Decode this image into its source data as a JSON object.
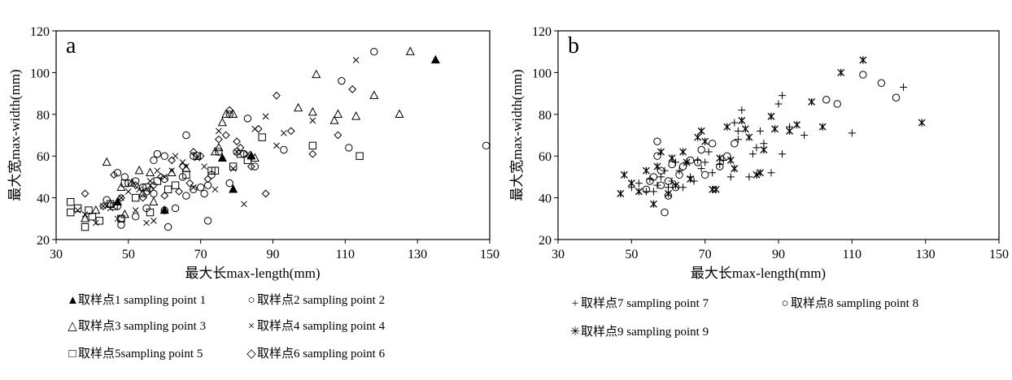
{
  "chart_data": [
    {
      "type": "scatter",
      "panel_label": "a",
      "xlabel": "最大长max-length(mm)",
      "ylabel": "最大宽max-width(mm)",
      "xlim": [
        30,
        150
      ],
      "ylim": [
        20,
        120
      ],
      "xticks": [
        "30",
        "50",
        "70",
        "90",
        "110",
        "130",
        "150"
      ],
      "yticks": [
        "20",
        "40",
        "60",
        "80",
        "100",
        "120"
      ],
      "legend_position": "below",
      "series": [
        {
          "name": "取样点1 sampling point 1",
          "marker": "filled-triangle",
          "x": [
            135,
            60,
            47,
            79,
            76,
            84
          ],
          "y": [
            106,
            34,
            38,
            44,
            59,
            60
          ]
        },
        {
          "name": "取样点2 sampling point 2",
          "marker": "circle",
          "x": [
            118,
            149,
            109,
            72,
            61,
            55,
            60,
            47,
            50,
            44,
            111,
            93,
            66,
            58,
            65,
            60,
            83,
            82,
            52,
            48,
            70,
            71,
            52,
            63,
            66,
            78,
            57,
            75,
            68,
            48,
            55,
            49,
            73,
            80,
            72,
            60,
            68,
            78,
            85,
            54,
            57,
            47
          ],
          "y": [
            110,
            65,
            96,
            29,
            26,
            35,
            34,
            52,
            47,
            39,
            64,
            63,
            70,
            61,
            50,
            60,
            78,
            61,
            31,
            27,
            45,
            42,
            48,
            35,
            41,
            80,
            58,
            62,
            44,
            30,
            43,
            50,
            51,
            62,
            46,
            49,
            60,
            47,
            55,
            45,
            42,
            36
          ]
        },
        {
          "name": "取样点3 sampling point 3",
          "marker": "triangle",
          "x": [
            128,
            102,
            118,
            125,
            113,
            97,
            107,
            108,
            101,
            76,
            75,
            85,
            44,
            53,
            56,
            48,
            41,
            38,
            62,
            74,
            66,
            79,
            54,
            45,
            51,
            77,
            49,
            57
          ],
          "y": [
            110,
            99,
            89,
            80,
            79,
            83,
            77,
            80,
            81,
            76,
            64,
            59,
            57,
            53,
            52,
            45,
            34,
            30,
            52,
            62,
            54,
            80,
            42,
            37,
            47,
            80,
            32,
            38
          ]
        },
        {
          "name": "取样点4 sampling point 4",
          "marker": "cross",
          "x": [
            113,
            101,
            93,
            88,
            85,
            83,
            80,
            79,
            75,
            71,
            69,
            66,
            63,
            60,
            58,
            55,
            53,
            50,
            47,
            45,
            43,
            41,
            38,
            36,
            48,
            52,
            57,
            62,
            68,
            74,
            82,
            91,
            56,
            65
          ],
          "y": [
            106,
            77,
            71,
            79,
            73,
            61,
            62,
            54,
            72,
            55,
            59,
            55,
            60,
            50,
            53,
            28,
            44,
            43,
            30,
            35,
            36,
            28,
            32,
            34,
            40,
            34,
            29,
            53,
            45,
            44,
            37,
            65,
            48,
            57
          ]
        },
        {
          "name": "取样点5sampling point 5",
          "marker": "square",
          "x": [
            36,
            38,
            40,
            34,
            42,
            46,
            49,
            52,
            55,
            58,
            63,
            66,
            69,
            74,
            79,
            83,
            87,
            101,
            114,
            56,
            61,
            48,
            45,
            73,
            34,
            39,
            81
          ],
          "y": [
            35,
            26,
            31,
            38,
            29,
            36,
            47,
            40,
            45,
            48,
            46,
            51,
            60,
            53,
            55,
            58,
            69,
            65,
            60,
            33,
            44,
            30,
            37,
            53,
            33,
            34,
            61
          ]
        },
        {
          "name": "取样点6 sampling point 6",
          "marker": "diamond",
          "x": [
            112,
            108,
            95,
            91,
            84,
            80,
            88,
            78,
            75,
            72,
            70,
            68,
            65,
            62,
            59,
            57,
            54,
            52,
            48,
            46,
            43,
            38,
            101,
            77,
            81,
            86,
            67,
            64,
            60,
            56
          ],
          "y": [
            92,
            70,
            72,
            89,
            55,
            67,
            42,
            82,
            68,
            49,
            60,
            62,
            55,
            58,
            50,
            46,
            40,
            46,
            40,
            51,
            36,
            42,
            61,
            70,
            64,
            73,
            47,
            43,
            41,
            44
          ]
        }
      ]
    },
    {
      "type": "scatter",
      "panel_label": "b",
      "xlabel": "最大长max-length(mm)",
      "ylabel": "最大宽max-width(mm)",
      "xlim": [
        30,
        150
      ],
      "ylim": [
        20,
        120
      ],
      "xticks": [
        "30",
        "50",
        "70",
        "90",
        "110",
        "130",
        "150"
      ],
      "yticks": [
        "20",
        "40",
        "60",
        "80",
        "100",
        "120"
      ],
      "legend_position": "below",
      "series": [
        {
          "name": "取样点7 sampling point 7",
          "marker": "plus",
          "x": [
            124,
            110,
            97,
            93,
            91,
            90,
            88,
            86,
            84,
            83,
            82,
            80,
            79,
            78,
            77,
            75,
            74,
            72,
            71,
            70,
            69,
            68,
            67,
            66,
            65,
            64,
            63,
            62,
            61,
            60,
            59,
            58,
            57,
            56,
            55,
            54,
            52,
            50,
            79,
            85,
            91
          ],
          "y": [
            93,
            71,
            70,
            74,
            89,
            85,
            52,
            66,
            64,
            61,
            50,
            82,
            72,
            76,
            50,
            58,
            56,
            52,
            62,
            57,
            54,
            58,
            48,
            50,
            57,
            45,
            53,
            57,
            48,
            45,
            53,
            50,
            46,
            43,
            49,
            43,
            47,
            45,
            68,
            72,
            61
          ]
        },
        {
          "name": "取样点8 sampling point 8",
          "marker": "circle",
          "x": [
            113,
            118,
            122,
            103,
            106,
            72,
            57,
            59,
            60,
            62,
            64,
            66,
            68,
            70,
            54,
            55,
            56,
            58,
            74,
            76,
            78,
            57,
            60,
            63,
            58,
            61,
            69
          ],
          "y": [
            99,
            95,
            88,
            87,
            85,
            66,
            67,
            33,
            41,
            45,
            55,
            58,
            57,
            51,
            44,
            48,
            50,
            53,
            55,
            60,
            66,
            60,
            48,
            51,
            46,
            56,
            63
          ]
        },
        {
          "name": "取样点9 sampling point 9",
          "marker": "asterisk",
          "x": [
            113,
            107,
            99,
            95,
            102,
            129,
            88,
            86,
            84,
            82,
            80,
            78,
            76,
            74,
            72,
            70,
            68,
            66,
            64,
            62,
            60,
            58,
            56,
            54,
            52,
            50,
            48,
            47,
            57,
            61,
            65,
            69,
            73,
            77,
            81,
            85,
            89,
            93
          ],
          "y": [
            106,
            100,
            86,
            75,
            74,
            76,
            79,
            63,
            51,
            69,
            77,
            54,
            74,
            59,
            44,
            67,
            69,
            49,
            62,
            46,
            42,
            62,
            37,
            53,
            43,
            47,
            51,
            42,
            55,
            59,
            57,
            72,
            44,
            58,
            73,
            52,
            73,
            72
          ]
        }
      ]
    }
  ]
}
